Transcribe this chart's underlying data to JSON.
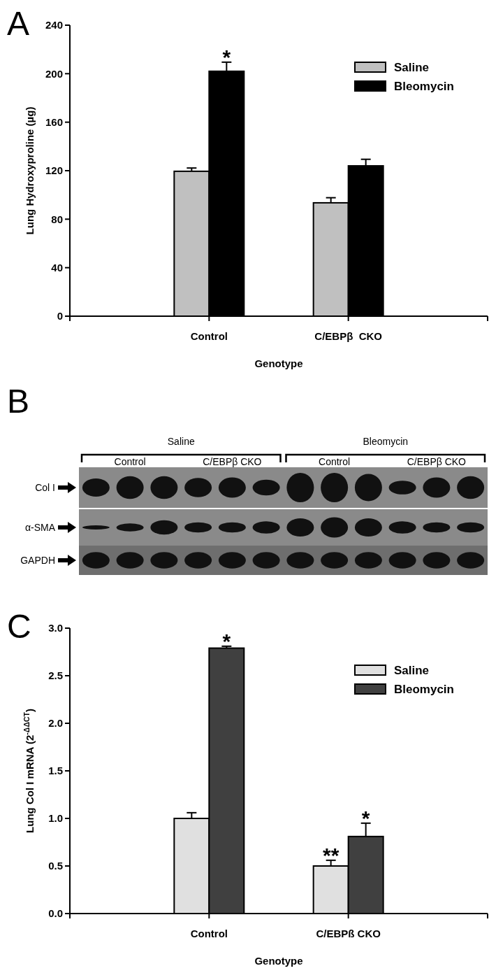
{
  "chart_data": [
    {
      "type": "bar",
      "title": "A",
      "categories": [
        "Control",
        "C/EBPβ  CKO"
      ],
      "xlabel": "Genotype",
      "ylabel": "Lung Hydroxyproline (µg)",
      "ylim": [
        0,
        240
      ],
      "yticks": [
        0,
        40,
        80,
        120,
        160,
        200,
        240
      ],
      "legend": "top right",
      "series": [
        {
          "name": "Saline",
          "color": "#c0c0c0",
          "values": [
            119.5,
            93.5
          ],
          "errors": [
            2.7,
            4.2
          ]
        },
        {
          "name": "Bleomycin",
          "color": "#000000",
          "values": [
            202,
            124
          ],
          "errors": [
            7.5,
            5.4
          ]
        }
      ],
      "annotations": [
        {
          "text": "*",
          "x": "Control",
          "y": 202
        }
      ]
    },
    {
      "type": "other",
      "title": "B",
      "categories": [
        "Control",
        "C/EBPβ CKO",
        "Control",
        "C/EBPβ CKO"
      ],
      "y_categories": [
        "Col I",
        "α-SMA",
        "GAPDH"
      ],
      "annotations": [
        "Saline",
        "Bleomycin"
      ]
    },
    {
      "type": "bar",
      "title": "C",
      "categories": [
        "Control",
        "C/EBPß CKO"
      ],
      "xlabel": "Genotype",
      "ylabel": "Lung Col I mRNA (2$^{-ΔΔCT}$)",
      "ylim": [
        0,
        3
      ],
      "yticks": [
        {
          "value": 0,
          "label": "0.0"
        },
        {
          "value": 0.5,
          "label": "0.5"
        },
        {
          "value": 1,
          "label": "1.0"
        },
        {
          "value": 1.5,
          "label": "1.5"
        },
        {
          "value": 2,
          "label": "2.0"
        },
        {
          "value": 2.5,
          "label": "2.5"
        },
        {
          "value": 3,
          "label": "3.0"
        }
      ],
      "legend": "top right",
      "series": [
        {
          "name": "Saline",
          "color": "#e0e0e0",
          "values": [
            1.0,
            0.5
          ],
          "errors": [
            0.06,
            0.06
          ]
        },
        {
          "name": "Bleomycin",
          "color": "#404040",
          "values": [
            2.79,
            0.81
          ],
          "errors": [
            0.02,
            0.14
          ]
        }
      ],
      "annotations": [
        {
          "text": "*",
          "x": "Control",
          "y": 2.79
        },
        {
          "text": "**",
          "x": "C/EBPß CKO",
          "y": 0.5
        },
        {
          "text": "*",
          "x": "C/EBPß CKO",
          "y": 0.81
        }
      ]
    }
  ]
}
